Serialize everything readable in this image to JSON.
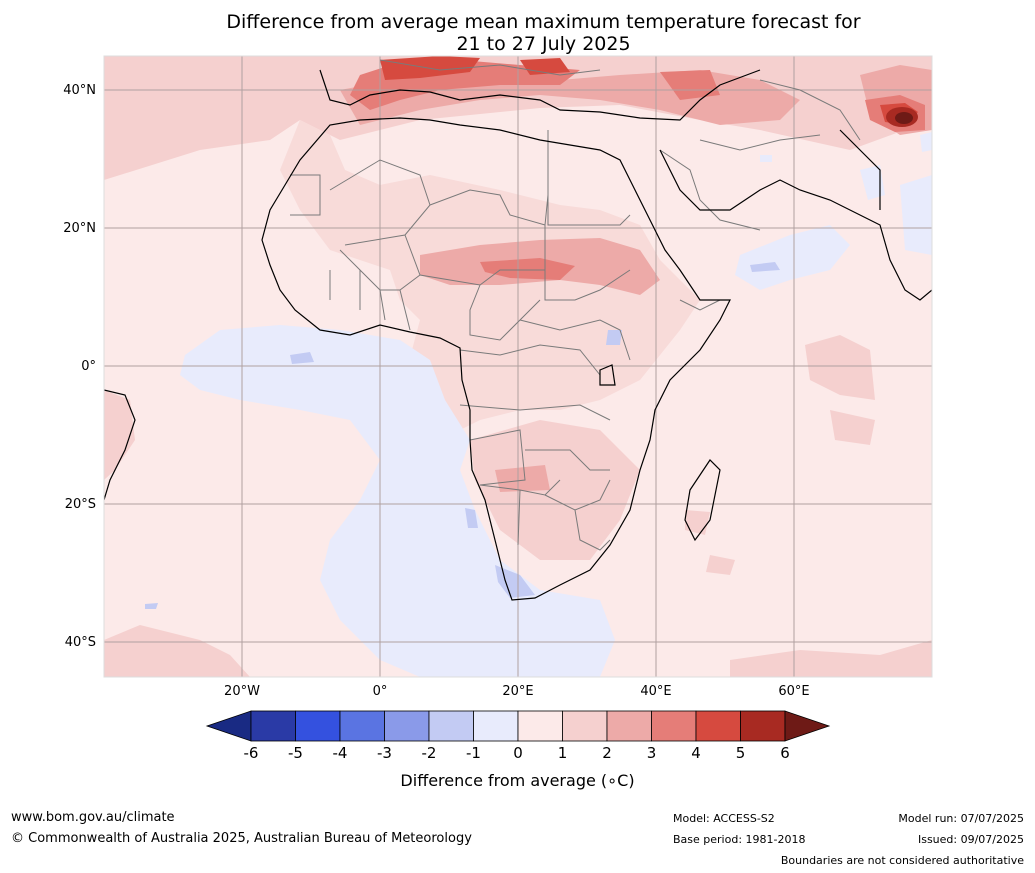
{
  "title_line1": "Difference from average mean maximum temperature forecast for",
  "title_line2": "21 to 27 July 2025",
  "lat_labels": [
    "40°N",
    "20°N",
    "0°",
    "20°S",
    "40°S"
  ],
  "lon_labels": [
    "20°W",
    "0°",
    "20°E",
    "40°E",
    "60°E"
  ],
  "colorbar": {
    "ticks": [
      "-6",
      "-5",
      "-4",
      "-3",
      "-2",
      "-1",
      "0",
      "1",
      "2",
      "3",
      "4",
      "5",
      "6"
    ],
    "label": "Difference from average (∘C)",
    "colors": [
      "#192a83",
      "#2a3aa6",
      "#3451df",
      "#5a74e2",
      "#8a9ae9",
      "#c3cbf3",
      "#e8ebfc",
      "#fceae9",
      "#f5d0cf",
      "#edaaa8",
      "#e57d78",
      "#d64a3f",
      "#a82a22",
      "#6e1a16"
    ]
  },
  "footer": {
    "website": "www.bom.gov.au/climate",
    "copyright": "© Commonwealth of Australia 2025, Australian Bureau of Meteorology",
    "model": "Model: ACCESS-S2",
    "base_period": "Base period: 1981-2018",
    "model_run": "Model run: 07/07/2025",
    "issued": "Issued: 09/07/2025",
    "disclaimer": "Boundaries are not considered authoritative"
  }
}
